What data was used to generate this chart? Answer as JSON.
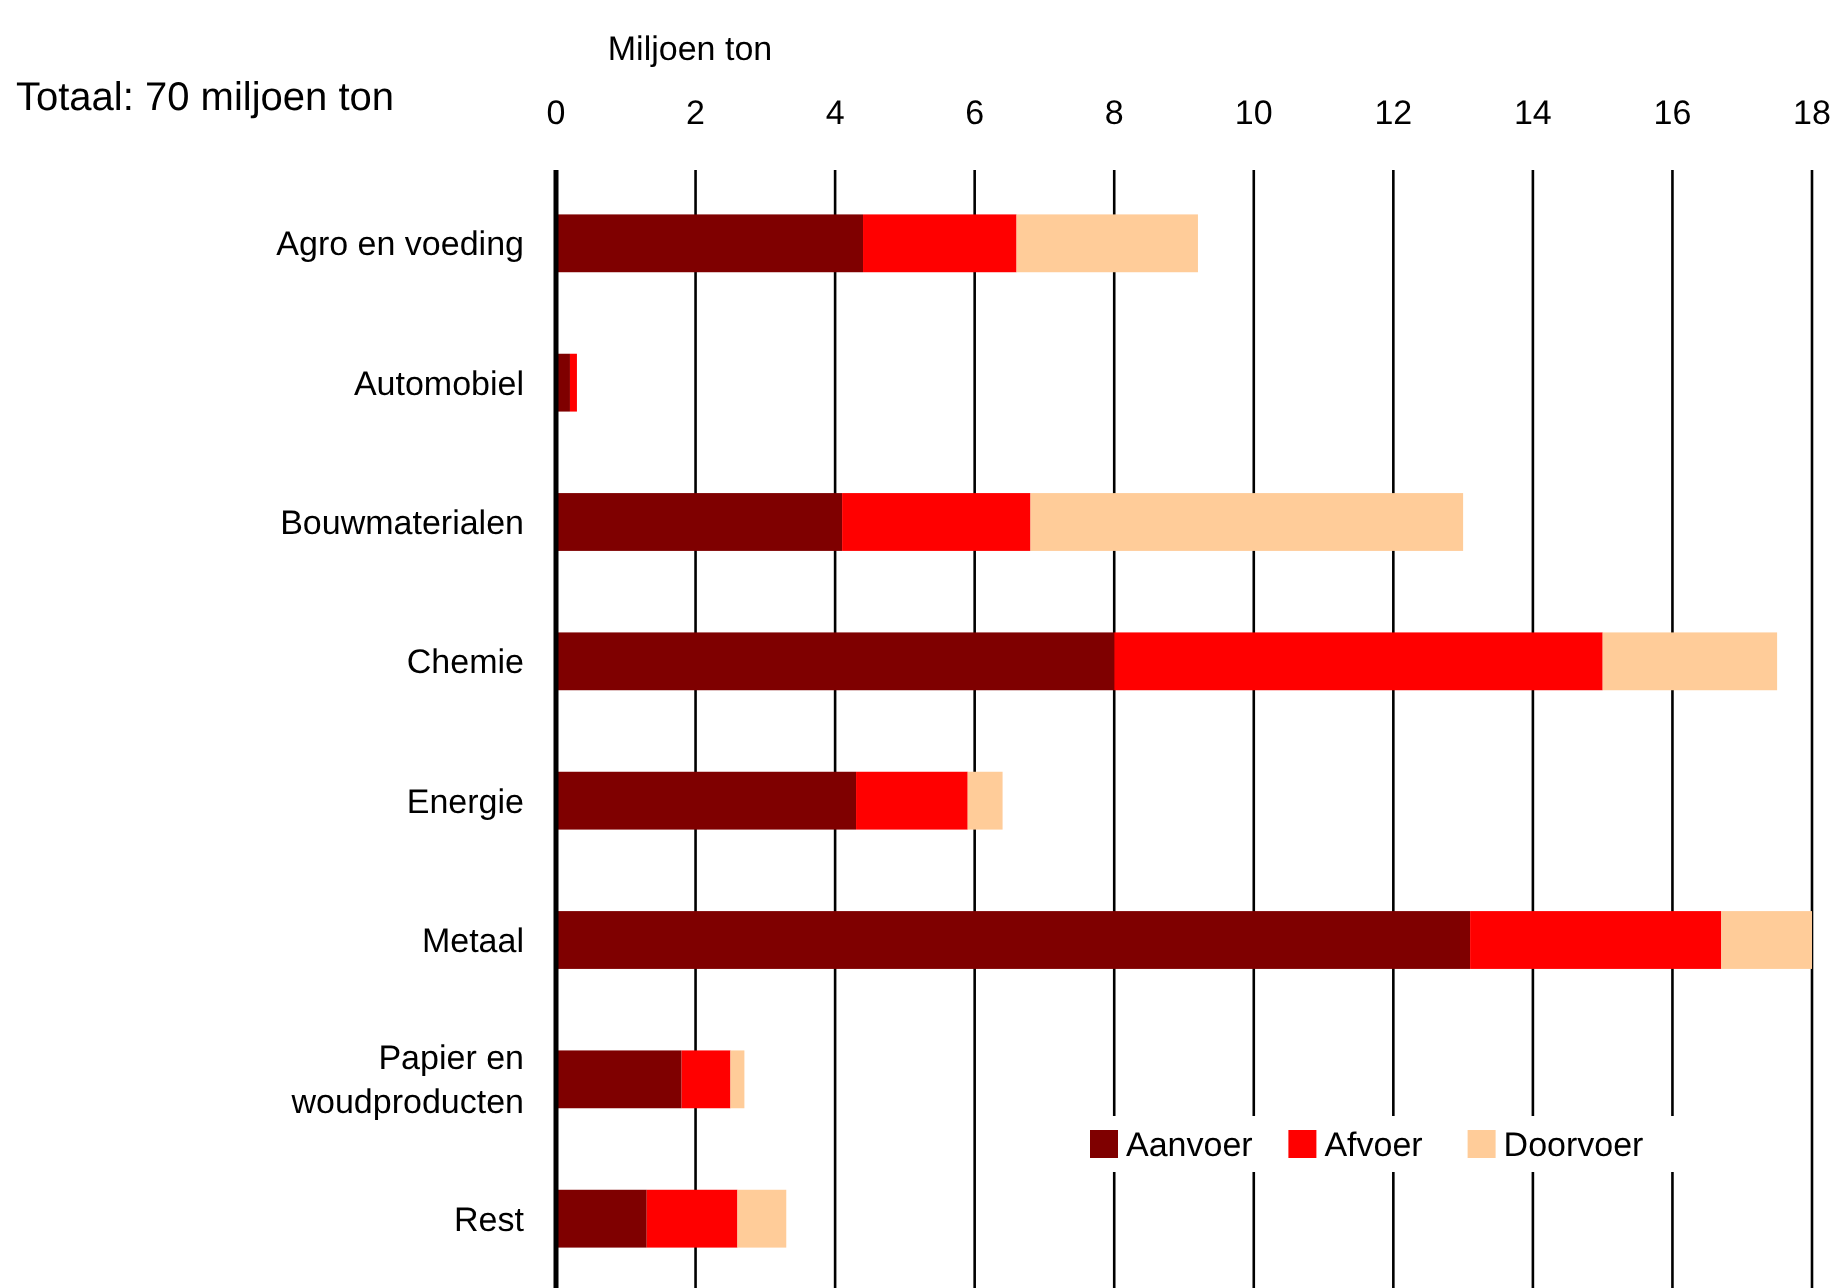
{
  "chart_data": {
    "type": "bar",
    "orientation": "horizontal",
    "stacked": true,
    "title": "Totaal: 70 miljoen ton",
    "xlabel": "Miljoen ton",
    "categories": [
      "Agro en voeding",
      "Automobiel",
      "Bouwmaterialen",
      "Chemie",
      "Energie",
      "Metaal",
      "Papier en woudproducten",
      "Rest"
    ],
    "series": [
      {
        "name": "Aanvoer",
        "color": "#7f0000",
        "values": [
          4.4,
          0.2,
          4.1,
          8.0,
          4.3,
          13.1,
          1.8,
          1.3
        ]
      },
      {
        "name": "Afvoer",
        "color": "#ff0000",
        "values": [
          2.2,
          0.1,
          2.7,
          7.0,
          1.6,
          3.6,
          0.7,
          1.3
        ]
      },
      {
        "name": "Doorvoer",
        "color": "#ffcc99",
        "values": [
          2.6,
          0,
          6.2,
          2.5,
          0.5,
          1.3,
          0.2,
          0.7
        ]
      }
    ],
    "xlim": [
      0,
      18
    ],
    "xticks": [
      0,
      2,
      4,
      6,
      8,
      10,
      12,
      14,
      16,
      18
    ],
    "grid": "x",
    "legend": "bottom right"
  }
}
